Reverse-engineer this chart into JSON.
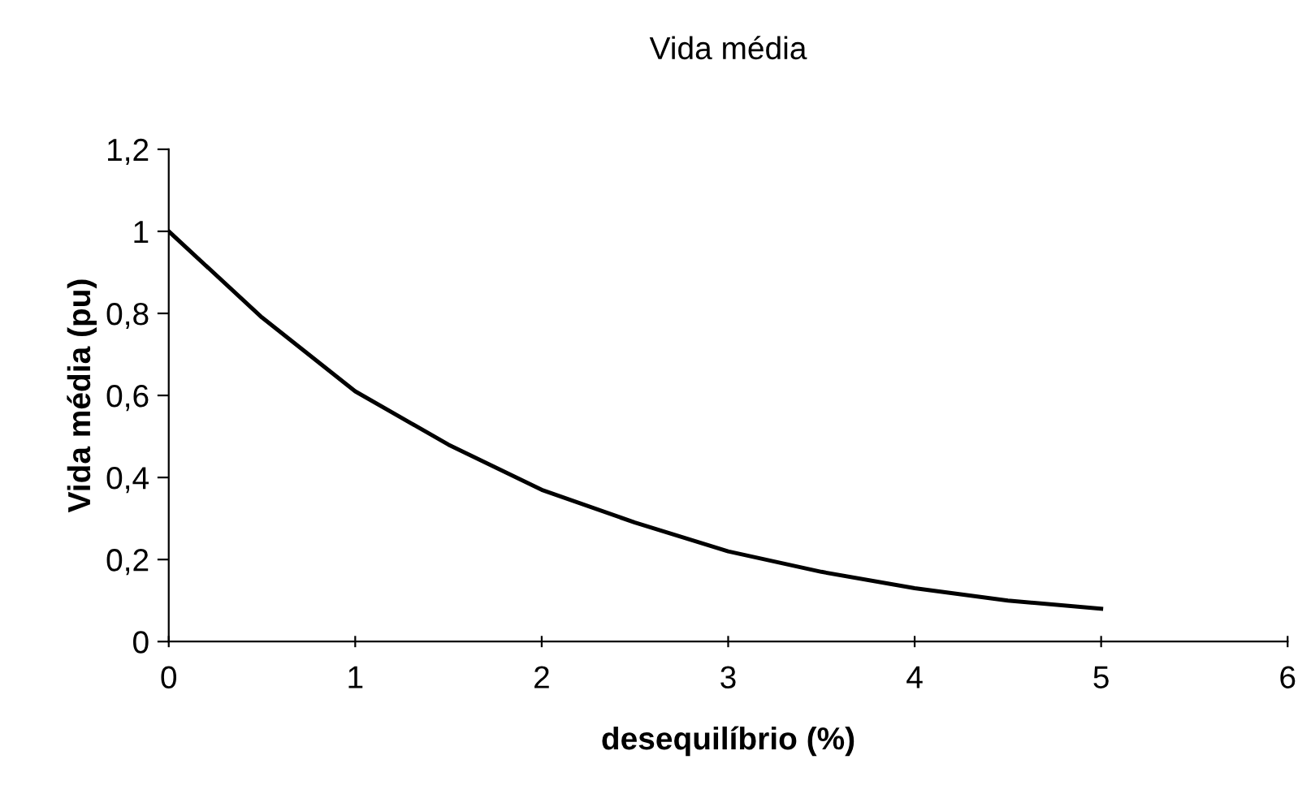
{
  "chart_data": {
    "type": "line",
    "title": "Vida média",
    "xlabel": "desequilíbrio (%)",
    "ylabel": "Vida média (pu)",
    "series": [
      {
        "color": "#000000",
        "x": [
          0,
          0.5,
          1,
          1.5,
          2,
          2.5,
          3,
          3.5,
          4,
          4.5,
          5
        ],
        "values": [
          1,
          0.79,
          0.61,
          0.48,
          0.37,
          0.29,
          0.22,
          0.17,
          0.13,
          0.1,
          0.08
        ]
      }
    ],
    "xlim": [
      0,
      6
    ],
    "xticks": [
      0,
      1,
      2,
      3,
      4,
      5,
      6
    ],
    "ylim": [
      0,
      1.2
    ],
    "yticks": [
      0,
      {
        "value": 0.2,
        "label": "0,2"
      },
      {
        "value": 0.4,
        "label": "0,4"
      },
      {
        "value": 0.6,
        "label": "0,6"
      },
      {
        "value": 0.8,
        "label": "0,8"
      },
      1,
      {
        "value": 1.2,
        "label": "1,2"
      }
    ],
    "grid": false,
    "legend": false,
    "marker": "none",
    "line_style": "solid"
  }
}
